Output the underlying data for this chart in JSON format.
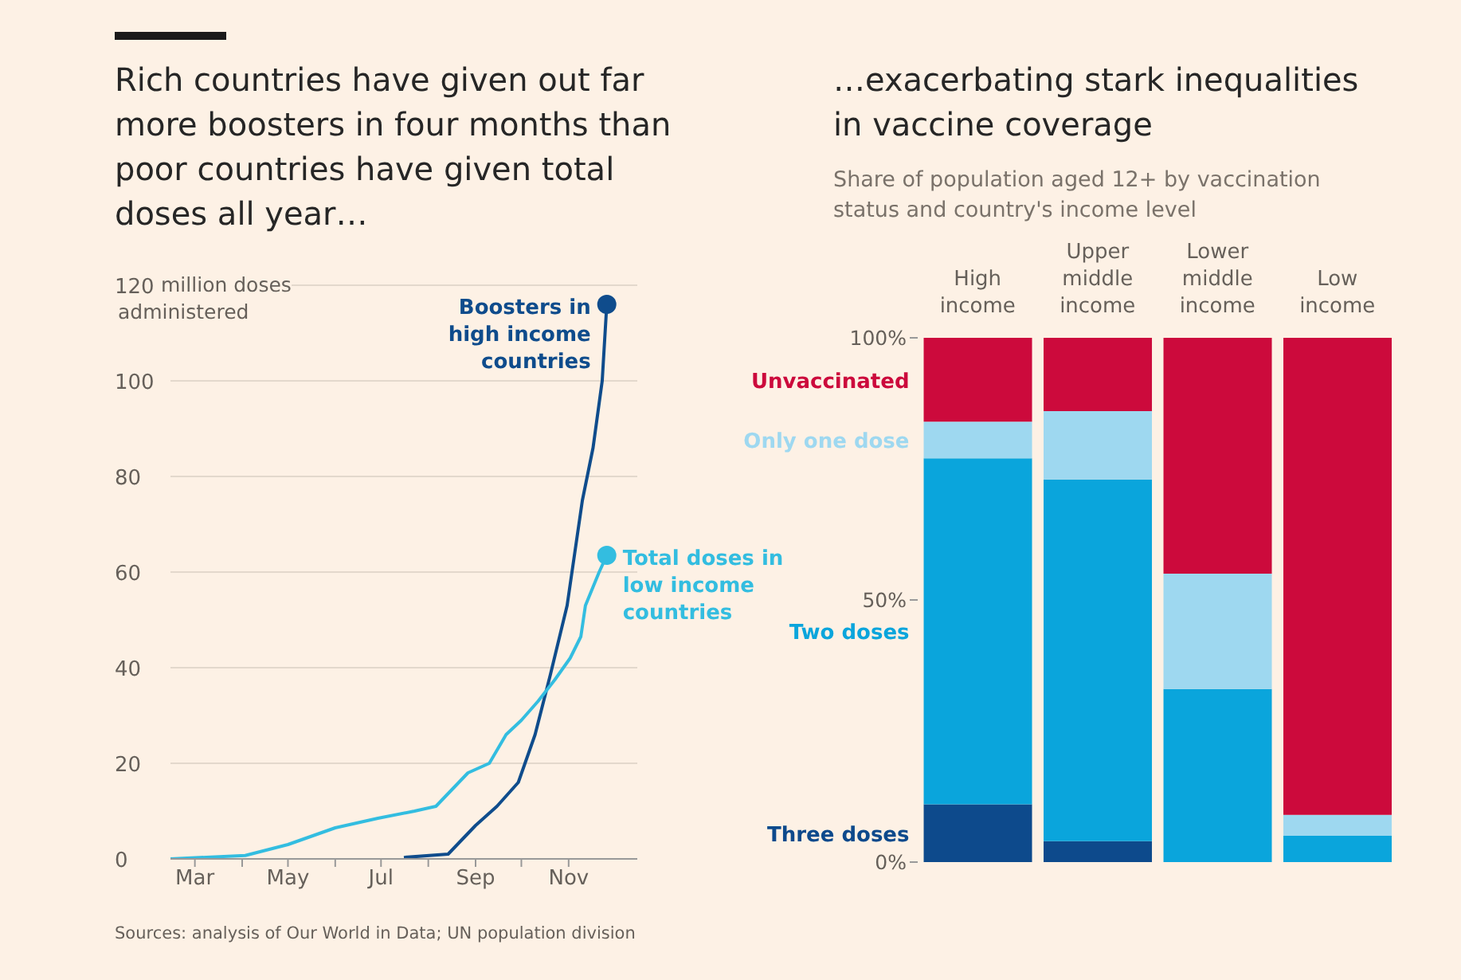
{
  "chart_data": [
    {
      "type": "line",
      "title": "Rich countries have given out far more boosters in four months than poor countries have given total doses all year…",
      "ylabel": "million doses administered",
      "xlim": [
        "--02-13",
        "--12-16"
      ],
      "xticks": [
        {
          "value": "--03-01",
          "label": "Mar"
        },
        {
          "value": "--04-01",
          "label": null
        },
        {
          "value": "--05-01",
          "label": "May"
        },
        {
          "value": "--06-01",
          "label": null
        },
        {
          "value": "--07-01",
          "label": "Jul"
        },
        {
          "value": "--08-01",
          "label": null
        },
        {
          "value": "--09-01",
          "label": "Sep"
        },
        {
          "value": "--10-01",
          "label": null
        },
        {
          "value": "--11-01",
          "label": "Nov"
        }
      ],
      "ylim": [
        0,
        120
      ],
      "yticks": [
        0,
        20,
        40,
        60,
        80,
        100,
        120
      ],
      "grid": "y",
      "series": [
        {
          "name": "Boosters in high income countries",
          "color": "#0f4c8c",
          "x": [
            "--07-16",
            "--08-14",
            "--09-01",
            "--09-15",
            "--09-29",
            "--10-10",
            "--10-20",
            "--10-31",
            "--11-10",
            "--11-17",
            "--11-23",
            "--11-26"
          ],
          "values": [
            0.3,
            1,
            7,
            11,
            16,
            26,
            38.5,
            53,
            75,
            86,
            100,
            116
          ]
        },
        {
          "name": "Total doses in low income countries",
          "color": "#33bde0",
          "x": [
            "--02-13",
            "--04-03",
            "--05-01",
            "--06-01",
            "--06-29",
            "--07-23",
            "--08-06",
            "--08-27",
            "--09-10",
            "--09-21",
            "--10-01",
            "--10-12",
            "--10-23",
            "--11-02",
            "--11-09",
            "--11-12",
            "--11-21",
            "--11-26"
          ],
          "values": [
            0,
            0.7,
            3,
            6.5,
            8.5,
            10,
            11,
            18,
            20,
            26,
            29,
            33,
            37.5,
            42,
            46.5,
            53,
            60,
            63.5
          ]
        }
      ],
      "annotations": [
        "Sources: analysis of Our World in Data; UN population division"
      ]
    },
    {
      "type": "bar",
      "stacked": true,
      "title": "…exacerbating stark inequalities in vaccine coverage",
      "subtitle": "Share of population aged 12+ by vaccination status and country's income level",
      "categories": [
        "High income",
        "Upper middle income",
        "Lower middle income",
        "Low income"
      ],
      "ylim": [
        0,
        100
      ],
      "yticks": [
        {
          "value": 0,
          "label": "0%"
        },
        {
          "value": 50,
          "label": "50%"
        },
        {
          "value": 100,
          "label": "100%"
        }
      ],
      "series": [
        {
          "name": "Three doses",
          "color": "#0d4a8c",
          "values": [
            11,
            4,
            0,
            0
          ]
        },
        {
          "name": "Two doses",
          "color": "#0aa5dc",
          "values": [
            66,
            69,
            33,
            5
          ]
        },
        {
          "name": "Only one dose",
          "color": "#9ed8f0",
          "values": [
            7,
            13,
            22,
            4
          ]
        },
        {
          "name": "Unvaccinated",
          "color": "#cc0a3c",
          "values": [
            16,
            14,
            45,
            91
          ]
        }
      ]
    }
  ]
}
